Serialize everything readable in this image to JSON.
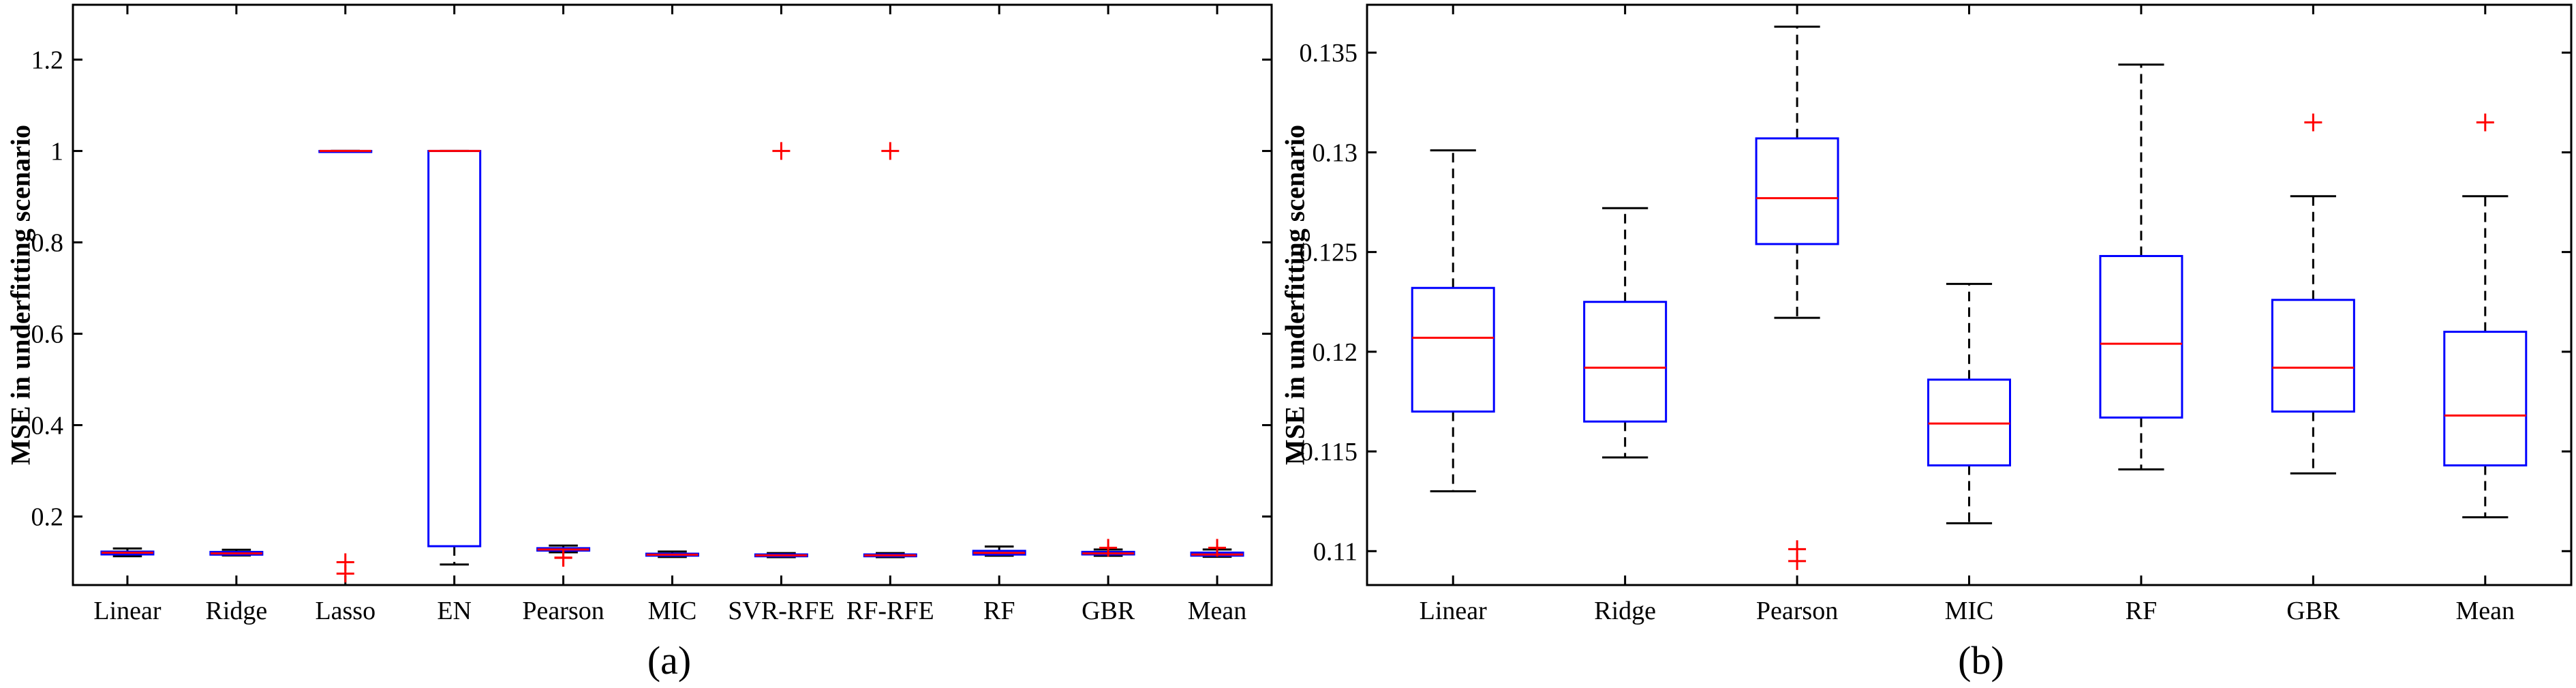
{
  "figure": {
    "panel_a_caption": "(a)",
    "panel_b_caption": "(b)"
  },
  "chart_data": [
    {
      "type": "box",
      "panel": "(a)",
      "ylabel": "MSE in underfitting scenario",
      "xlabel": "",
      "ylim": [
        0.05,
        1.32
      ],
      "yticks": [
        0.2,
        0.4,
        0.6,
        0.8,
        1,
        1.2
      ],
      "ytick_labels": [
        "0.2",
        "0.4",
        "0.6",
        "0.8",
        "1",
        "1.2"
      ],
      "grid": false,
      "colors": {
        "box": "#0000ff",
        "median": "#ff0000",
        "whisker": "#000000",
        "outlier": "#ff0000"
      },
      "categories": [
        "Linear",
        "Ridge",
        "Lasso",
        "EN",
        "Pearson",
        "MIC",
        "SVR-RFE",
        "RF-RFE",
        "RF",
        "GBR",
        "Mean"
      ],
      "boxes": [
        {
          "label": "Linear",
          "whisker_low": 0.113,
          "q1": 0.117,
          "median": 0.1207,
          "q3": 0.1232,
          "whisker_high": 0.1301,
          "outliers": []
        },
        {
          "label": "Ridge",
          "whisker_low": 0.1147,
          "q1": 0.1165,
          "median": 0.1192,
          "q3": 0.1225,
          "whisker_high": 0.1272,
          "outliers": []
        },
        {
          "label": "Lasso",
          "whisker_low": 1.0,
          "q1": 1.0,
          "median": 1.0,
          "q3": 1.0,
          "whisker_high": 1.0,
          "outliers": [
            0.1,
            0.075
          ]
        },
        {
          "label": "EN",
          "whisker_low": 0.095,
          "q1": 0.135,
          "median": 1.0,
          "q3": 1.0,
          "whisker_high": 1.0,
          "outliers": []
        },
        {
          "label": "Pearson",
          "whisker_low": 0.1217,
          "q1": 0.1254,
          "median": 0.1277,
          "q3": 0.1307,
          "whisker_high": 0.1363,
          "outliers": [
            0.11,
            0.1095
          ]
        },
        {
          "label": "MIC",
          "whisker_low": 0.1114,
          "q1": 0.1143,
          "median": 0.1164,
          "q3": 0.1186,
          "whisker_high": 0.1234,
          "outliers": []
        },
        {
          "label": "SVR-RFE",
          "whisker_low": 0.111,
          "q1": 0.113,
          "median": 0.115,
          "q3": 0.117,
          "whisker_high": 0.12,
          "outliers": [
            1.0
          ]
        },
        {
          "label": "RF-RFE",
          "whisker_low": 0.111,
          "q1": 0.113,
          "median": 0.115,
          "q3": 0.117,
          "whisker_high": 0.12,
          "outliers": [
            1.0
          ]
        },
        {
          "label": "RF",
          "whisker_low": 0.1141,
          "q1": 0.1167,
          "median": 0.1204,
          "q3": 0.1248,
          "whisker_high": 0.1344,
          "outliers": []
        },
        {
          "label": "GBR",
          "whisker_low": 0.1139,
          "q1": 0.117,
          "median": 0.1192,
          "q3": 0.1226,
          "whisker_high": 0.1278,
          "outliers": [
            0.1315
          ]
        },
        {
          "label": "Mean",
          "whisker_low": 0.1117,
          "q1": 0.1143,
          "median": 0.1168,
          "q3": 0.121,
          "whisker_high": 0.1278,
          "outliers": [
            0.1315
          ]
        }
      ]
    },
    {
      "type": "box",
      "panel": "(b)",
      "ylabel": "MSE in underfitting scenario",
      "xlabel": "",
      "ylim": [
        0.1083,
        0.1374
      ],
      "yticks": [
        0.11,
        0.115,
        0.12,
        0.125,
        0.13,
        0.135
      ],
      "ytick_labels": [
        "0.11",
        "0.115",
        "0.12",
        "0.125",
        "0.13",
        "0.135"
      ],
      "grid": false,
      "colors": {
        "box": "#0000ff",
        "median": "#ff0000",
        "whisker": "#000000",
        "outlier": "#ff0000"
      },
      "categories": [
        "Linear",
        "Ridge",
        "Pearson",
        "MIC",
        "RF",
        "GBR",
        "Mean"
      ],
      "boxes": [
        {
          "label": "Linear",
          "whisker_low": 0.113,
          "q1": 0.117,
          "median": 0.1207,
          "q3": 0.1232,
          "whisker_high": 0.1301,
          "outliers": []
        },
        {
          "label": "Ridge",
          "whisker_low": 0.1147,
          "q1": 0.1165,
          "median": 0.1192,
          "q3": 0.1225,
          "whisker_high": 0.1272,
          "outliers": []
        },
        {
          "label": "Pearson",
          "whisker_low": 0.1217,
          "q1": 0.1254,
          "median": 0.1277,
          "q3": 0.1307,
          "whisker_high": 0.1363,
          "outliers": [
            0.1101,
            0.1095
          ]
        },
        {
          "label": "MIC",
          "whisker_low": 0.1114,
          "q1": 0.1143,
          "median": 0.1164,
          "q3": 0.1186,
          "whisker_high": 0.1234,
          "outliers": []
        },
        {
          "label": "RF",
          "whisker_low": 0.1141,
          "q1": 0.1167,
          "median": 0.1204,
          "q3": 0.1248,
          "whisker_high": 0.1344,
          "outliers": []
        },
        {
          "label": "GBR",
          "whisker_low": 0.1139,
          "q1": 0.117,
          "median": 0.1192,
          "q3": 0.1226,
          "whisker_high": 0.1278,
          "outliers": [
            0.1315
          ]
        },
        {
          "label": "Mean",
          "whisker_low": 0.1117,
          "q1": 0.1143,
          "median": 0.1168,
          "q3": 0.121,
          "whisker_high": 0.1278,
          "outliers": [
            0.1315
          ]
        }
      ]
    }
  ]
}
